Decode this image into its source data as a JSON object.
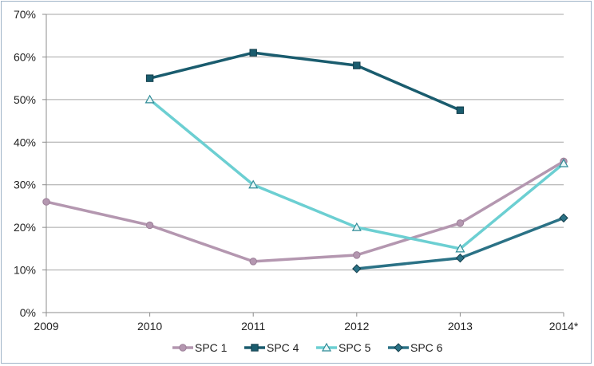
{
  "chart_data": {
    "type": "line",
    "title": "",
    "xlabel": "",
    "ylabel": "",
    "categories": [
      "2009",
      "2010",
      "2011",
      "2012",
      "2013",
      "2014*"
    ],
    "ylim": [
      0,
      70
    ],
    "yticks": [
      "0%",
      "10%",
      "20%",
      "30%",
      "40%",
      "50%",
      "60%",
      "70%"
    ],
    "grid": true,
    "legend": "bottom",
    "series": [
      {
        "name": "SPC 1",
        "values": [
          26,
          20.5,
          12,
          13.5,
          21,
          35.5
        ],
        "color": "#b497b0",
        "marker": "circle"
      },
      {
        "name": "SPC 4",
        "values": [
          null,
          55,
          61,
          58,
          47.5,
          null
        ],
        "color": "#1a5c6e",
        "marker": "square"
      },
      {
        "name": "SPC 5",
        "values": [
          null,
          50,
          30,
          20,
          15,
          35
        ],
        "color": "#6ccfd2",
        "marker": "triangle"
      },
      {
        "name": "SPC 6",
        "values": [
          null,
          null,
          null,
          10.3,
          12.8,
          22.2
        ],
        "color": "#2b7286",
        "marker": "diamond"
      }
    ]
  }
}
